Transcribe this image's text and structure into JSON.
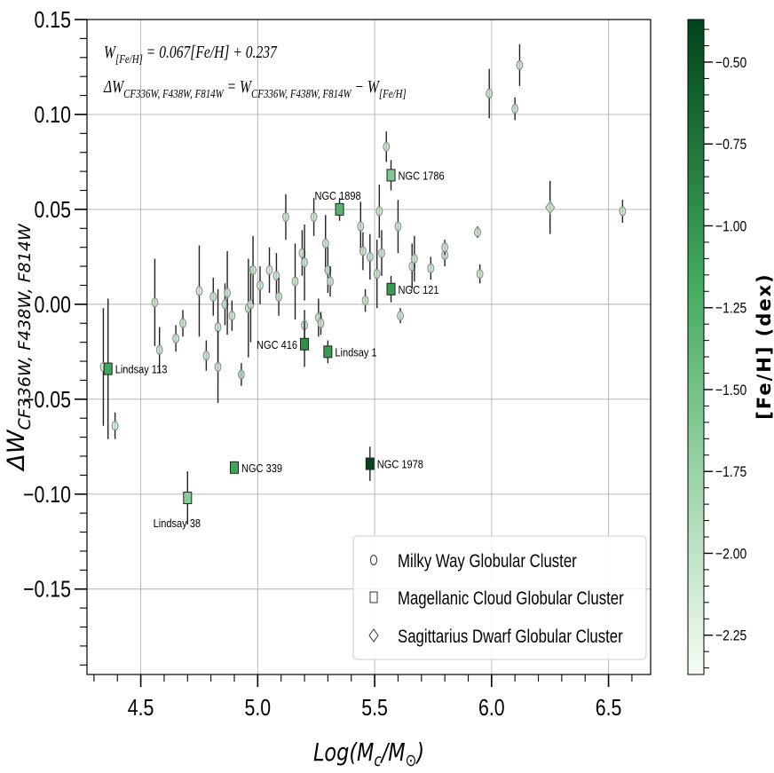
{
  "chart_data": {
    "type": "scatter",
    "xlabel": "Log(M_c/M_⊙)",
    "ylabel": "ΔW_{CF336W, F438W, F814W}",
    "xlim": [
      4.27,
      6.68
    ],
    "ylim": [
      -0.195,
      0.15
    ],
    "x_ticks": [
      4.5,
      5.0,
      5.5,
      6.0,
      6.5
    ],
    "x_tick_labels": [
      "4.5",
      "5.0",
      "5.5",
      "6.0",
      "6.5"
    ],
    "y_ticks": [
      0.15,
      0.1,
      0.05,
      0.0,
      -0.05,
      -0.1,
      -0.15
    ],
    "y_tick_labels": [
      "0.15",
      "0.10",
      "0.05",
      "0.00",
      "−0.05",
      "−0.10",
      "−0.15"
    ],
    "grid": true,
    "formula_lines": [
      {
        "main": "W",
        "sub": "[Fe/H]",
        "rest": " = 0.067[Fe/H] + 0.237"
      },
      {
        "main": "ΔW",
        "sub": "CF336W, F438W, F814W",
        "rest": " = W",
        "sub2": "CF336W, F438W, F814W",
        "rest2": " − W",
        "sub3": "[Fe/H]"
      }
    ],
    "colorbar": {
      "label": "[Fe/H] (dex)",
      "vmin": -2.37,
      "vmax": -0.37,
      "ticks": [
        -0.5,
        -0.75,
        -1.0,
        -1.25,
        -1.5,
        -1.75,
        -2.0,
        -2.25
      ],
      "tick_labels": [
        "−0.50",
        "−0.75",
        "−1.00",
        "−1.25",
        "−1.50",
        "−1.75",
        "−2.00",
        "−2.25"
      ],
      "color_low": "#f7fcf5",
      "color_mid": "#41ab5d",
      "color_high": "#00441b"
    },
    "legend": {
      "placement": "lower-right",
      "entries": [
        {
          "marker": "circle",
          "label": "Milky Way Globular Cluster"
        },
        {
          "marker": "square",
          "label": "Magellanic Cloud Globular Cluster"
        },
        {
          "marker": "diamond",
          "label": "Sagittarius Dwarf Globular Cluster"
        }
      ]
    },
    "series": [
      {
        "marker": "circle",
        "points": [
          {
            "x": 4.34,
            "y": -0.033,
            "err": 0.031,
            "feh": -2.1
          },
          {
            "x": 4.39,
            "y": -0.064,
            "err": 0.007,
            "feh": -2.1
          },
          {
            "x": 4.56,
            "y": 0.001,
            "err": 0.023,
            "feh": -2.0
          },
          {
            "x": 4.58,
            "y": -0.024,
            "err": 0.012,
            "feh": -2.0
          },
          {
            "x": 4.65,
            "y": -0.018,
            "err": 0.007,
            "feh": -2.0
          },
          {
            "x": 4.68,
            "y": -0.01,
            "err": 0.007,
            "feh": -2.0
          },
          {
            "x": 4.75,
            "y": 0.007,
            "err": 0.024,
            "feh": -2.1
          },
          {
            "x": 4.78,
            "y": -0.027,
            "err": 0.008,
            "feh": -2.0
          },
          {
            "x": 4.81,
            "y": 0.004,
            "err": 0.01,
            "feh": -2.0
          },
          {
            "x": 4.83,
            "y": -0.012,
            "err": 0.02,
            "feh": -2.0
          },
          {
            "x": 4.83,
            "y": -0.033,
            "err": 0.019,
            "feh": -2.0
          },
          {
            "x": 4.86,
            "y": 0.0,
            "err": 0.011,
            "feh": -2.0
          },
          {
            "x": 4.87,
            "y": 0.006,
            "err": 0.022,
            "feh": -2.0
          },
          {
            "x": 4.89,
            "y": -0.006,
            "err": 0.008,
            "feh": -2.0
          },
          {
            "x": 4.93,
            "y": -0.037,
            "err": 0.006,
            "feh": -1.8
          },
          {
            "x": 4.96,
            "y": -0.002,
            "err": 0.026,
            "feh": -2.0
          },
          {
            "x": 4.97,
            "y": 0.0,
            "err": 0.02,
            "feh": -2.0
          },
          {
            "x": 4.98,
            "y": 0.018,
            "err": 0.018,
            "feh": -2.0
          },
          {
            "x": 5.01,
            "y": 0.01,
            "err": 0.01,
            "feh": -2.0
          },
          {
            "x": 5.05,
            "y": 0.018,
            "err": 0.012,
            "feh": -2.1
          },
          {
            "x": 5.08,
            "y": 0.015,
            "err": 0.012,
            "feh": -2.0
          },
          {
            "x": 5.09,
            "y": 0.004,
            "err": 0.01,
            "feh": -2.0
          },
          {
            "x": 5.12,
            "y": 0.046,
            "err": 0.012,
            "feh": -2.0
          },
          {
            "x": 5.16,
            "y": 0.012,
            "err": 0.02,
            "feh": -2.0
          },
          {
            "x": 5.19,
            "y": 0.027,
            "err": 0.012,
            "feh": -2.0
          },
          {
            "x": 5.2,
            "y": 0.022,
            "err": 0.02,
            "feh": -2.0
          },
          {
            "x": 5.2,
            "y": -0.011,
            "err": 0.008,
            "feh": -2.0
          },
          {
            "x": 5.24,
            "y": 0.046,
            "err": 0.01,
            "feh": -2.0
          },
          {
            "x": 5.26,
            "y": -0.007,
            "err": 0.01,
            "feh": -2.0
          },
          {
            "x": 5.27,
            "y": -0.01,
            "err": 0.006,
            "feh": -2.0
          },
          {
            "x": 5.29,
            "y": 0.032,
            "err": 0.015,
            "feh": -2.0
          },
          {
            "x": 5.3,
            "y": 0.018,
            "err": 0.012,
            "feh": -2.0
          },
          {
            "x": 5.31,
            "y": 0.012,
            "err": 0.008,
            "feh": -2.0
          },
          {
            "x": 5.44,
            "y": 0.041,
            "err": 0.013,
            "feh": -2.0
          },
          {
            "x": 5.45,
            "y": 0.028,
            "err": 0.01,
            "feh": -2.0
          },
          {
            "x": 5.46,
            "y": 0.002,
            "err": 0.006,
            "feh": -2.0
          },
          {
            "x": 5.48,
            "y": 0.025,
            "err": 0.012,
            "feh": -2.0
          },
          {
            "x": 5.51,
            "y": 0.016,
            "err": 0.018,
            "feh": -2.0
          },
          {
            "x": 5.52,
            "y": 0.049,
            "err": 0.014,
            "feh": -2.0
          },
          {
            "x": 5.53,
            "y": 0.027,
            "err": 0.012,
            "feh": -2.0
          },
          {
            "x": 5.55,
            "y": 0.083,
            "err": 0.008,
            "feh": -2.0
          },
          {
            "x": 5.6,
            "y": 0.041,
            "err": 0.014,
            "feh": -2.0
          },
          {
            "x": 5.61,
            "y": -0.006,
            "err": 0.004,
            "feh": -2.0
          },
          {
            "x": 5.66,
            "y": 0.02,
            "err": 0.012,
            "feh": -2.0
          },
          {
            "x": 5.67,
            "y": 0.024,
            "err": 0.012,
            "feh": -2.0
          },
          {
            "x": 5.74,
            "y": 0.019,
            "err": 0.006,
            "feh": -2.0
          },
          {
            "x": 5.8,
            "y": 0.026,
            "err": 0.006,
            "feh": -2.0
          },
          {
            "x": 5.8,
            "y": 0.03,
            "err": 0.004,
            "feh": -2.0
          },
          {
            "x": 5.94,
            "y": 0.038,
            "err": 0.003,
            "feh": -2.0
          },
          {
            "x": 5.95,
            "y": 0.016,
            "err": 0.005,
            "feh": -2.0
          },
          {
            "x": 5.99,
            "y": 0.111,
            "err": 0.013,
            "feh": -2.0
          },
          {
            "x": 6.1,
            "y": 0.103,
            "err": 0.006,
            "feh": -2.0
          },
          {
            "x": 6.12,
            "y": 0.126,
            "err": 0.011,
            "feh": -2.0
          },
          {
            "x": 6.56,
            "y": 0.049,
            "err": 0.006,
            "feh": -2.0
          }
        ]
      },
      {
        "marker": "diamond",
        "points": [
          {
            "x": 6.25,
            "y": 0.051,
            "err": 0.014,
            "feh": -2.0
          }
        ]
      },
      {
        "marker": "square",
        "points": [
          {
            "x": 4.36,
            "y": -0.034,
            "err": 0.037,
            "feh": -1.15,
            "label": "Lindsay 113",
            "label_pos": "right"
          },
          {
            "x": 4.7,
            "y": -0.102,
            "err": 0.014,
            "feh": -1.65,
            "label": "Lindsay 38",
            "label_pos": "below-left"
          },
          {
            "x": 4.9,
            "y": -0.086,
            "err": 0.003,
            "feh": -1.15,
            "label": "NGC 339",
            "label_pos": "right"
          },
          {
            "x": 5.2,
            "y": -0.021,
            "err": 0.012,
            "feh": -0.95,
            "label": "NGC 416",
            "label_pos": "left"
          },
          {
            "x": 5.3,
            "y": -0.025,
            "err": 0.006,
            "feh": -1.05,
            "label": "Lindsay 1",
            "label_pos": "right"
          },
          {
            "x": 5.35,
            "y": 0.05,
            "err": 0.006,
            "feh": -1.3,
            "label": "NGC 1898",
            "label_pos": "above"
          },
          {
            "x": 5.48,
            "y": -0.084,
            "err": 0.009,
            "feh": -0.38,
            "label": "NGC 1978",
            "label_pos": "right"
          },
          {
            "x": 5.57,
            "y": 0.008,
            "err": 0.007,
            "feh": -1.05,
            "label": "NGC 121",
            "label_pos": "right"
          },
          {
            "x": 5.57,
            "y": 0.068,
            "err": 0.008,
            "feh": -1.6,
            "label": "NGC 1786",
            "label_pos": "right"
          }
        ]
      }
    ]
  }
}
